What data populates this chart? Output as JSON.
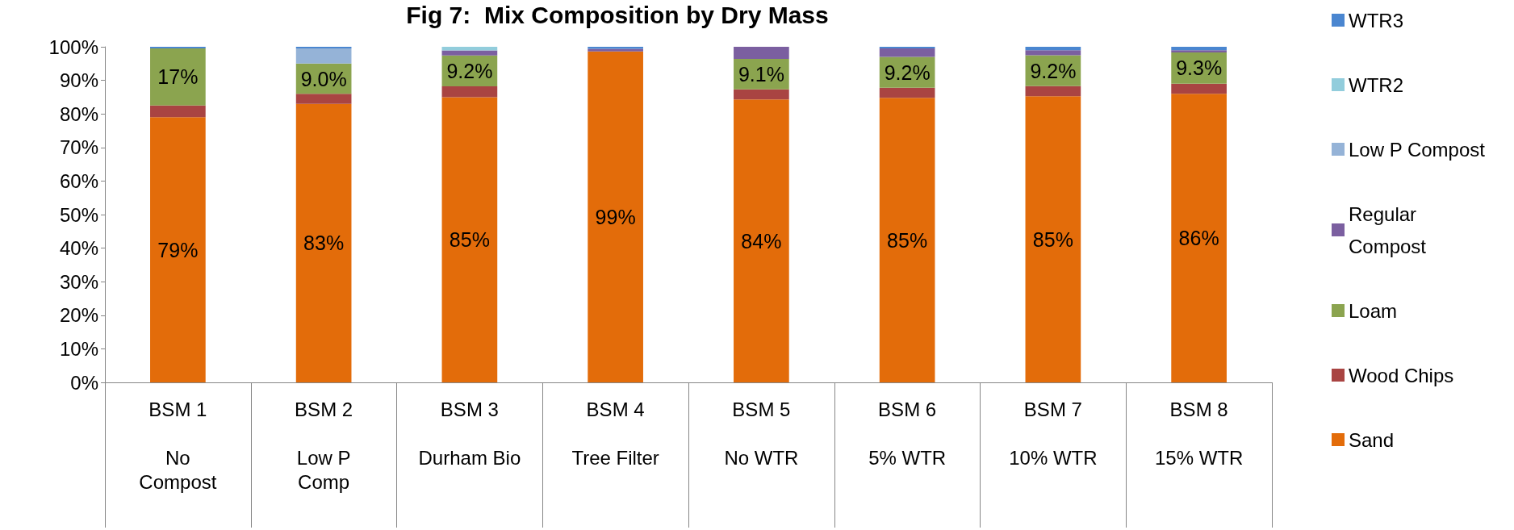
{
  "chart_data": {
    "type": "bar",
    "title": "Fig 7:  Mix Composition by Dry Mass",
    "categories": [
      "BSM 1\n\nNo\nCompost",
      "BSM 2\n\nLow P\nComp",
      "BSM 3\n\nDurham Bio",
      "BSM 4\n\nTree Filter",
      "BSM 5\n\nNo WTR",
      "BSM 6\n\n5% WTR",
      "BSM 7\n\n10% WTR",
      "BSM 8\n\n15% WTR"
    ],
    "stacked": true,
    "series": [
      {
        "name": "Sand",
        "color": "#e36c0a",
        "values": [
          79,
          83,
          85,
          98.6,
          84.3,
          84.8,
          85.3,
          86
        ],
        "value_labels": [
          "79%",
          "83%",
          "85%",
          "99%",
          "84%",
          "85%",
          "85%",
          "86%"
        ]
      },
      {
        "name": "Wood Chips",
        "color": "#a94442",
        "values": [
          3.5,
          3,
          3.2,
          0,
          3,
          3,
          3,
          3
        ]
      },
      {
        "name": "Loam",
        "color": "#8ba44f",
        "values": [
          17,
          9,
          9.2,
          0,
          9.1,
          9.2,
          9.2,
          9.3
        ],
        "value_labels": [
          "17%",
          "9.0%",
          "9.2%",
          null,
          "9.1%",
          "9.2%",
          "9.2%",
          "9.3%"
        ]
      },
      {
        "name": "Regular Compost",
        "color": "#7b5fa0",
        "values": [
          0,
          0,
          1.5,
          0.8,
          3.6,
          2.5,
          1.5,
          0.7
        ]
      },
      {
        "name": "Low P Compost",
        "color": "#95b3d7",
        "values": [
          0,
          4.5,
          0,
          0,
          0,
          0,
          0,
          0
        ]
      },
      {
        "name": "WTR2",
        "color": "#92cddc",
        "values": [
          0,
          0,
          1.1,
          0,
          0,
          0,
          0,
          0
        ]
      },
      {
        "name": "WTR3",
        "color": "#4a86d0",
        "values": [
          0.5,
          0.5,
          0,
          0.6,
          0,
          0.5,
          1,
          1
        ]
      }
    ],
    "ylim": [
      0,
      100
    ],
    "yticks": [
      {
        "value": 0,
        "label": "0%"
      },
      {
        "value": 10,
        "label": "10%"
      },
      {
        "value": 20,
        "label": "20%"
      },
      {
        "value": 30,
        "label": "30%"
      },
      {
        "value": 40,
        "label": "40%"
      },
      {
        "value": 50,
        "label": "50%"
      },
      {
        "value": 60,
        "label": "60%"
      },
      {
        "value": 70,
        "label": "70%"
      },
      {
        "value": 80,
        "label": "80%"
      },
      {
        "value": 90,
        "label": "90%"
      },
      {
        "value": 100,
        "label": "100%"
      }
    ],
    "grid": false,
    "legend": "right"
  }
}
